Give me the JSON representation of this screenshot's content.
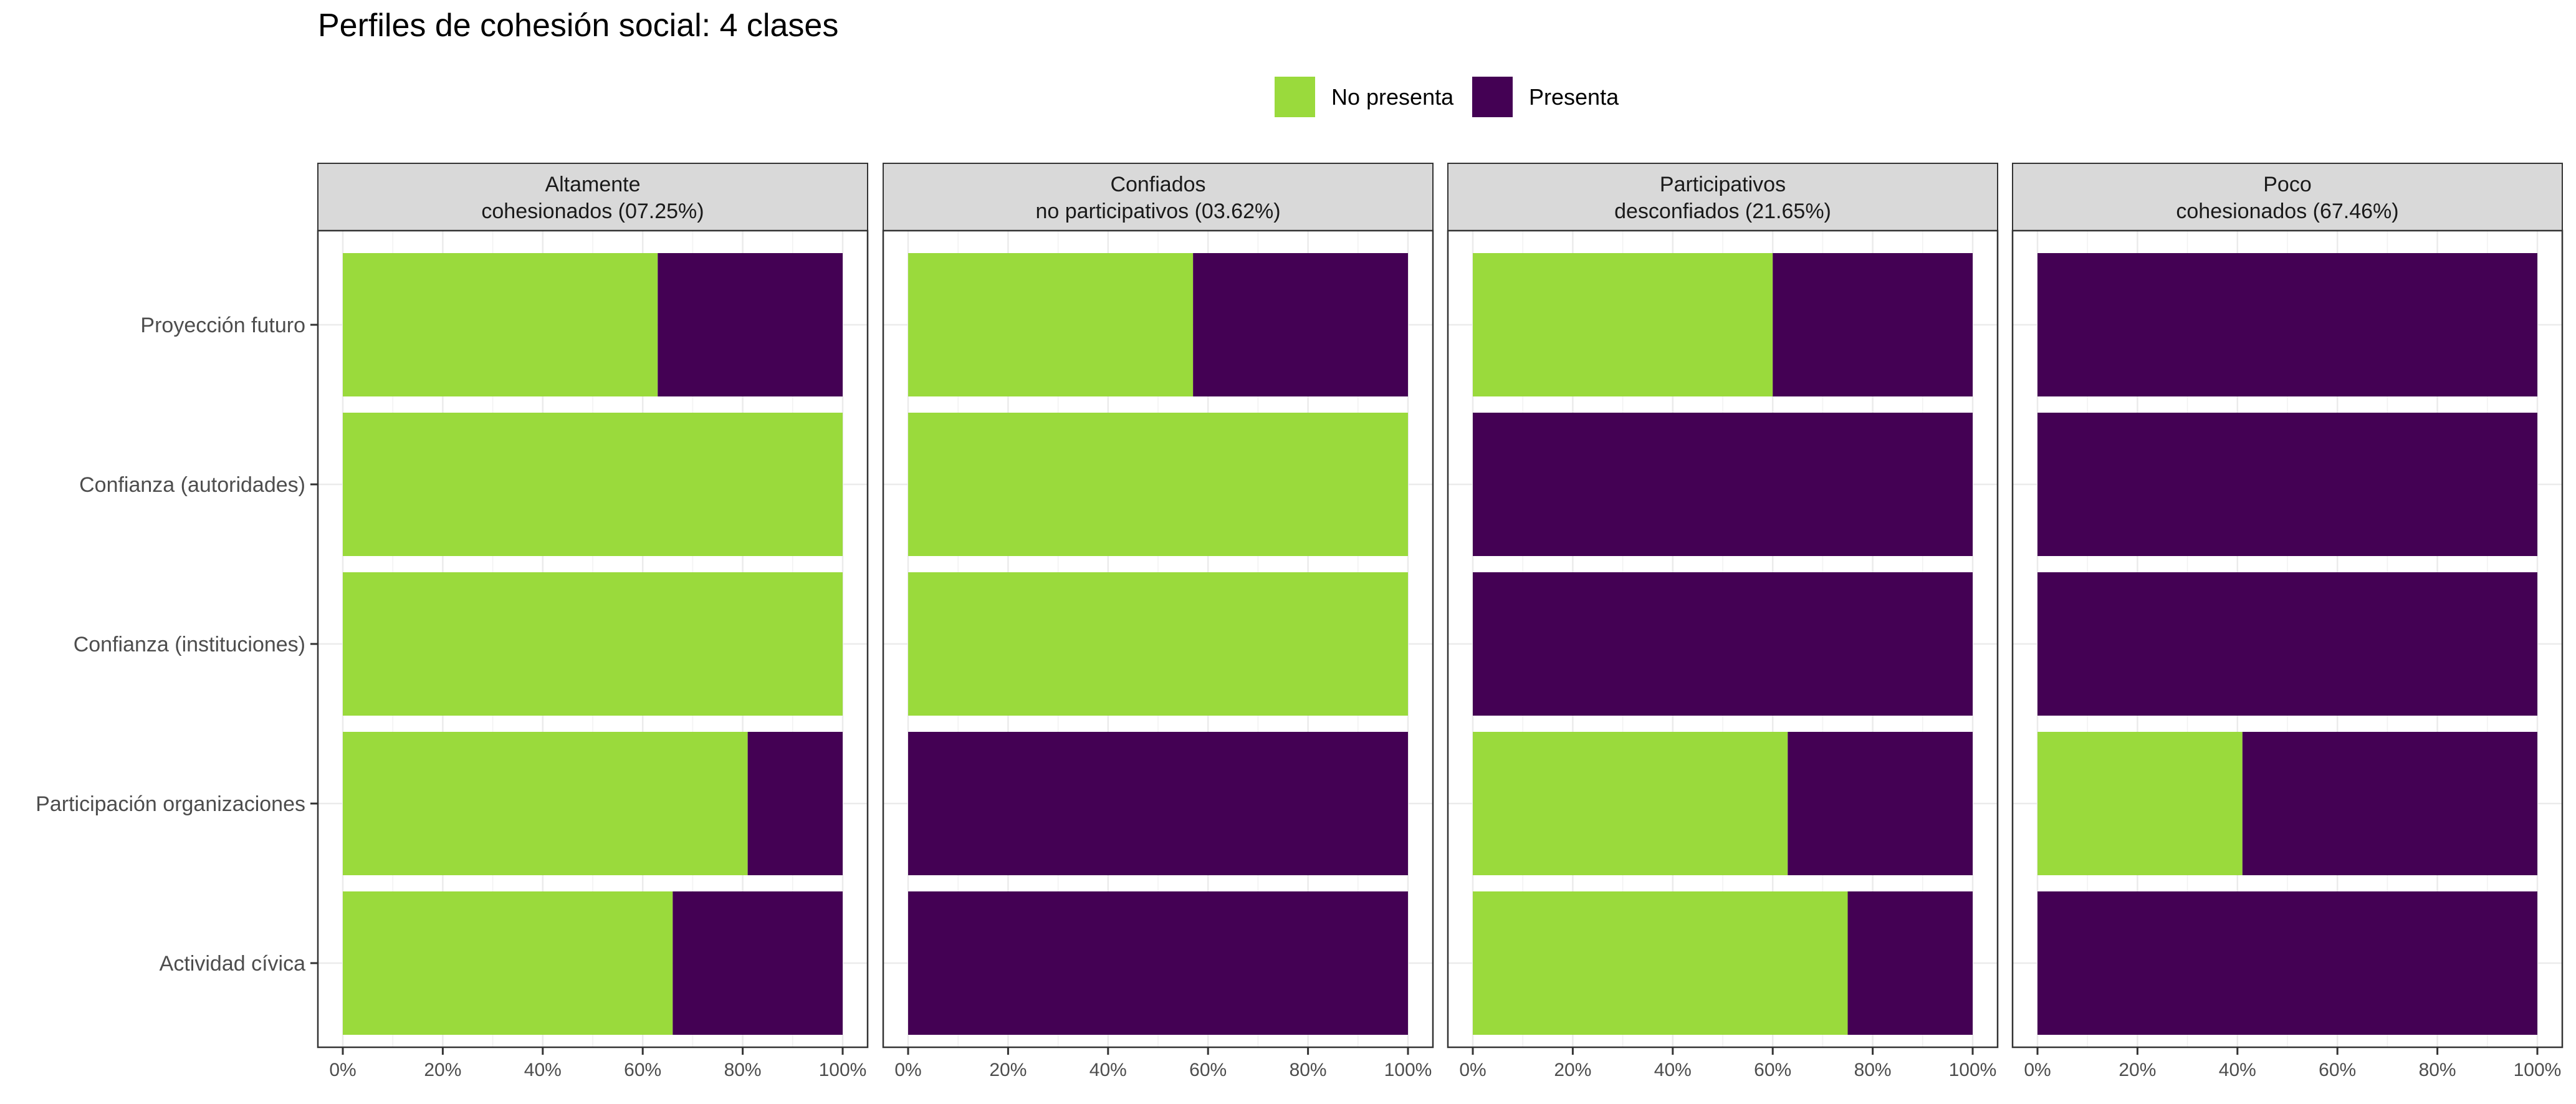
{
  "chart_data": {
    "type": "bar",
    "orientation": "horizontal",
    "stacked": true,
    "title": "Perfiles de cohesión social: 4 clases",
    "xlabel": "",
    "ylabel": "",
    "xlim": [
      0,
      1
    ],
    "x_ticks": [
      "0%",
      "20%",
      "40%",
      "60%",
      "80%",
      "100%"
    ],
    "grid": true,
    "legend": {
      "position": "top",
      "entries": [
        {
          "name": "No presenta",
          "color": "#9ADA3C"
        },
        {
          "name": "Presenta",
          "color": "#440154"
        }
      ]
    },
    "categories": [
      "Proyección futuro",
      "Confianza (autoridades)",
      "Confianza (instituciones)",
      "Participación organizaciones",
      "Actividad cívica"
    ],
    "facets": [
      {
        "label_line1": "Altamente",
        "label_line2": "cohesionados (07.25%)",
        "series": [
          {
            "name": "No presenta",
            "values": [
              0.63,
              1.0,
              1.0,
              0.81,
              0.66
            ]
          },
          {
            "name": "Presenta",
            "values": [
              0.37,
              0.0,
              0.0,
              0.19,
              0.34
            ]
          }
        ]
      },
      {
        "label_line1": "Confiados",
        "label_line2": "no participativos (03.62%)",
        "series": [
          {
            "name": "No presenta",
            "values": [
              0.57,
              1.0,
              1.0,
              0.0,
              0.0
            ]
          },
          {
            "name": "Presenta",
            "values": [
              0.43,
              0.0,
              0.0,
              1.0,
              1.0
            ]
          }
        ]
      },
      {
        "label_line1": "Participativos",
        "label_line2": "desconfiados (21.65%)",
        "series": [
          {
            "name": "No presenta",
            "values": [
              0.6,
              0.0,
              0.0,
              0.63,
              0.75
            ]
          },
          {
            "name": "Presenta",
            "values": [
              0.4,
              1.0,
              1.0,
              0.37,
              0.25
            ]
          }
        ]
      },
      {
        "label_line1": "Poco",
        "label_line2": "cohesionados (67.46%)",
        "series": [
          {
            "name": "No presenta",
            "values": [
              0.0,
              0.0,
              0.0,
              0.41,
              0.0
            ]
          },
          {
            "name": "Presenta",
            "values": [
              1.0,
              1.0,
              1.0,
              0.59,
              1.0
            ]
          }
        ]
      }
    ]
  }
}
